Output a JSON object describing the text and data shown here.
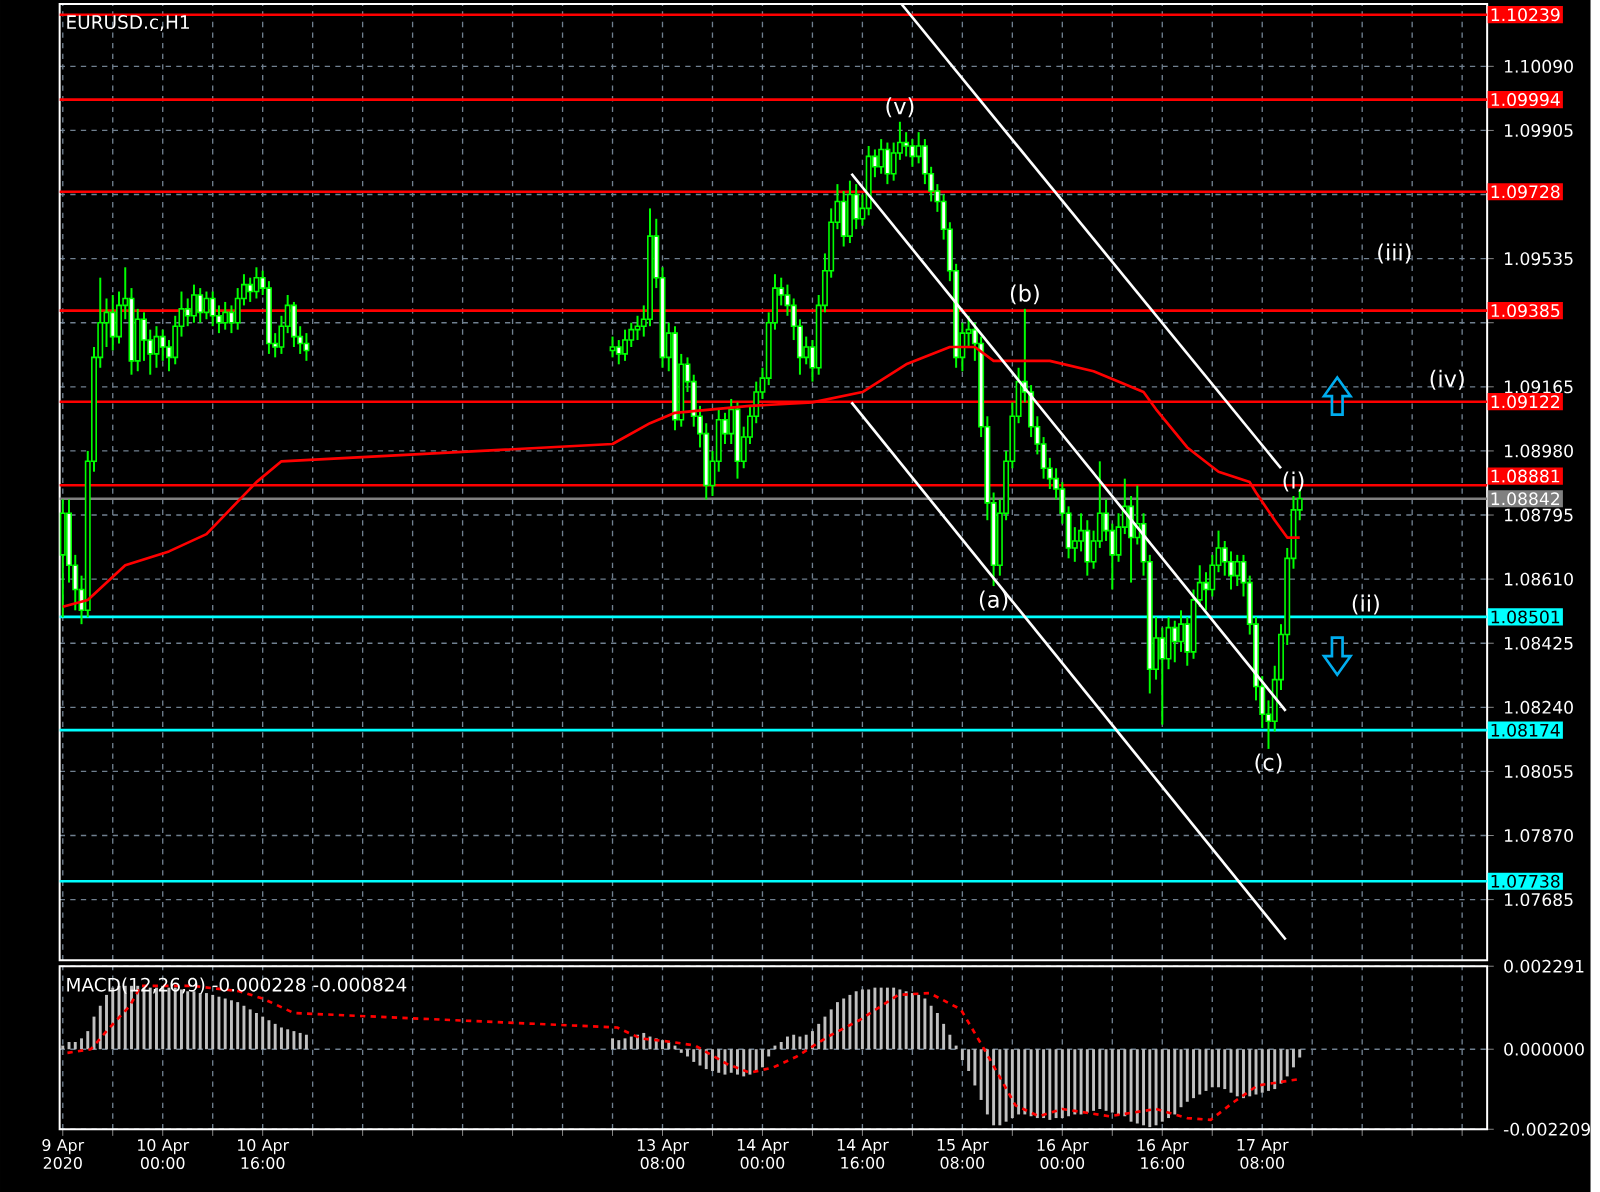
{
  "chart_data": [
    {
      "type": "candlestick",
      "title": "EURUSD.c,H1",
      "color": "#00ff00",
      "x": [
        "2020-04-09T08:00",
        "2020-04-09T09:00",
        "2020-04-09T10:00",
        "2020-04-09T11:00",
        "2020-04-09T12:00",
        "2020-04-09T13:00",
        "2020-04-09T14:00",
        "2020-04-09T15:00",
        "2020-04-09T16:00",
        "2020-04-09T17:00",
        "2020-04-09T18:00",
        "2020-04-09T19:00",
        "2020-04-09T20:00",
        "2020-04-09T21:00",
        "2020-04-09T22:00",
        "2020-04-09T23:00",
        "2020-04-10T00:00",
        "2020-04-10T01:00",
        "2020-04-10T02:00",
        "2020-04-10T03:00",
        "2020-04-10T04:00",
        "2020-04-10T05:00",
        "2020-04-10T06:00",
        "2020-04-10T07:00",
        "2020-04-10T08:00",
        "2020-04-10T09:00",
        "2020-04-10T10:00",
        "2020-04-10T11:00",
        "2020-04-10T12:00",
        "2020-04-10T13:00",
        "2020-04-10T14:00",
        "2020-04-10T15:00",
        "2020-04-10T16:00",
        "2020-04-10T17:00",
        "2020-04-10T18:00",
        "2020-04-10T19:00",
        "2020-04-10T20:00",
        "2020-04-10T21:00",
        "2020-04-10T22:00",
        "2020-04-10T23:00",
        "2020-04-13T00:00",
        "2020-04-13T01:00",
        "2020-04-13T02:00",
        "2020-04-13T03:00",
        "2020-04-13T04:00",
        "2020-04-13T05:00",
        "2020-04-13T06:00",
        "2020-04-13T07:00",
        "2020-04-13T08:00",
        "2020-04-13T09:00",
        "2020-04-13T10:00",
        "2020-04-13T11:00",
        "2020-04-13T12:00",
        "2020-04-13T13:00",
        "2020-04-13T14:00",
        "2020-04-13T15:00",
        "2020-04-13T16:00",
        "2020-04-13T17:00",
        "2020-04-13T18:00",
        "2020-04-13T19:00",
        "2020-04-13T20:00",
        "2020-04-13T21:00",
        "2020-04-13T22:00",
        "2020-04-13T23:00",
        "2020-04-14T00:00",
        "2020-04-14T01:00",
        "2020-04-14T02:00",
        "2020-04-14T03:00",
        "2020-04-14T04:00",
        "2020-04-14T05:00",
        "2020-04-14T06:00",
        "2020-04-14T07:00",
        "2020-04-14T08:00",
        "2020-04-14T09:00",
        "2020-04-14T10:00",
        "2020-04-14T11:00",
        "2020-04-14T12:00",
        "2020-04-14T13:00",
        "2020-04-14T14:00",
        "2020-04-14T15:00",
        "2020-04-14T16:00",
        "2020-04-14T17:00",
        "2020-04-14T18:00",
        "2020-04-14T19:00",
        "2020-04-14T20:00",
        "2020-04-14T21:00",
        "2020-04-14T22:00",
        "2020-04-14T23:00",
        "2020-04-15T00:00",
        "2020-04-15T01:00",
        "2020-04-15T02:00",
        "2020-04-15T03:00",
        "2020-04-15T04:00",
        "2020-04-15T05:00",
        "2020-04-15T06:00",
        "2020-04-15T07:00",
        "2020-04-15T08:00",
        "2020-04-15T09:00",
        "2020-04-15T10:00",
        "2020-04-15T11:00",
        "2020-04-15T12:00",
        "2020-04-15T13:00",
        "2020-04-15T14:00",
        "2020-04-15T15:00",
        "2020-04-15T16:00",
        "2020-04-15T17:00",
        "2020-04-15T18:00",
        "2020-04-15T19:00",
        "2020-04-15T20:00",
        "2020-04-15T21:00",
        "2020-04-15T22:00",
        "2020-04-15T23:00",
        "2020-04-16T00:00",
        "2020-04-16T01:00",
        "2020-04-16T02:00",
        "2020-04-16T03:00",
        "2020-04-16T04:00",
        "2020-04-16T05:00",
        "2020-04-16T06:00",
        "2020-04-16T07:00",
        "2020-04-16T08:00",
        "2020-04-16T09:00",
        "2020-04-16T10:00",
        "2020-04-16T11:00",
        "2020-04-16T12:00",
        "2020-04-16T13:00",
        "2020-04-16T14:00",
        "2020-04-16T15:00",
        "2020-04-16T16:00",
        "2020-04-16T17:00",
        "2020-04-16T18:00",
        "2020-04-16T19:00",
        "2020-04-16T20:00",
        "2020-04-16T21:00",
        "2020-04-16T22:00",
        "2020-04-16T23:00",
        "2020-04-17T00:00",
        "2020-04-17T01:00",
        "2020-04-17T02:00",
        "2020-04-17T03:00",
        "2020-04-17T04:00",
        "2020-04-17T05:00",
        "2020-04-17T06:00",
        "2020-04-17T07:00",
        "2020-04-17T08:00",
        "2020-04-17T09:00",
        "2020-04-17T10:00",
        "2020-04-17T11:00",
        "2020-04-17T12:00",
        "2020-04-17T13:00",
        "2020-04-17T14:00"
      ],
      "ohlc": [
        [
          1.0868,
          1.0884,
          1.085,
          1.088
        ],
        [
          1.088,
          1.0884,
          1.086,
          1.0865
        ],
        [
          1.0865,
          1.0868,
          1.0852,
          1.0858
        ],
        [
          1.0858,
          1.0862,
          1.0848,
          1.0852
        ],
        [
          1.0852,
          1.0898,
          1.085,
          1.0895
        ],
        [
          1.0895,
          1.0928,
          1.0892,
          1.0925
        ],
        [
          1.0925,
          1.0948,
          1.0922,
          1.0935
        ],
        [
          1.0935,
          1.0942,
          1.0928,
          1.0938
        ],
        [
          1.0938,
          1.0943,
          1.0927,
          1.0931
        ],
        [
          1.0931,
          1.0944,
          1.0929,
          1.094
        ],
        [
          1.094,
          1.0951,
          1.0936,
          1.0942
        ],
        [
          1.0942,
          1.0945,
          1.092,
          1.0924
        ],
        [
          1.0924,
          1.0939,
          1.0921,
          1.0936
        ],
        [
          1.0936,
          1.0938,
          1.0924,
          1.093
        ],
        [
          1.093,
          1.0933,
          1.092,
          1.0926
        ],
        [
          1.0926,
          1.0934,
          1.0922,
          1.0931
        ],
        [
          1.0931,
          1.0933,
          1.0924,
          1.0928
        ],
        [
          1.0928,
          1.093,
          1.0921,
          1.0925
        ],
        [
          1.0925,
          1.0937,
          1.0923,
          1.0934
        ],
        [
          1.0934,
          1.0944,
          1.0931,
          1.0939
        ],
        [
          1.0939,
          1.0942,
          1.0934,
          1.0937
        ],
        [
          1.0937,
          1.0946,
          1.0935,
          1.0943
        ],
        [
          1.0943,
          1.0945,
          1.0935,
          1.0938
        ],
        [
          1.0938,
          1.0944,
          1.0936,
          1.0942
        ],
        [
          1.0942,
          1.0944,
          1.0934,
          1.0937
        ],
        [
          1.0937,
          1.094,
          1.0932,
          1.0935
        ],
        [
          1.0935,
          1.0941,
          1.0933,
          1.0938
        ],
        [
          1.0938,
          1.094,
          1.0932,
          1.0935
        ],
        [
          1.0935,
          1.0945,
          1.0933,
          1.0942
        ],
        [
          1.0942,
          1.0949,
          1.094,
          1.0946
        ],
        [
          1.0946,
          1.0948,
          1.0941,
          1.0944
        ],
        [
          1.0944,
          1.0951,
          1.0942,
          1.0948
        ],
        [
          1.0948,
          1.095,
          1.0943,
          1.0945
        ],
        [
          1.0945,
          1.0947,
          1.0926,
          1.0929
        ],
        [
          1.0929,
          1.0932,
          1.0925,
          1.0928
        ],
        [
          1.0928,
          1.0937,
          1.0926,
          1.0934
        ],
        [
          1.0934,
          1.0943,
          1.0932,
          1.094
        ],
        [
          1.094,
          1.0941,
          1.0928,
          1.0931
        ],
        [
          1.0931,
          1.0934,
          1.0926,
          1.0929
        ],
        [
          1.0929,
          1.0932,
          1.0924,
          1.0927
        ],
        [
          1.0927,
          1.0931,
          1.0925,
          1.0928
        ],
        [
          1.0928,
          1.093,
          1.0923,
          1.0926
        ],
        [
          1.0926,
          1.0933,
          1.0924,
          1.093
        ],
        [
          1.093,
          1.0935,
          1.0928,
          1.0933
        ],
        [
          1.0933,
          1.0937,
          1.093,
          1.0934
        ],
        [
          1.0934,
          1.094,
          1.0931,
          1.0936
        ],
        [
          1.0936,
          1.0968,
          1.0934,
          1.096
        ],
        [
          1.096,
          1.0965,
          1.0945,
          1.0948
        ],
        [
          1.0948,
          1.0951,
          1.0922,
          1.0925
        ],
        [
          1.0925,
          1.0935,
          1.0921,
          1.0932
        ],
        [
          1.0932,
          1.0934,
          1.0904,
          1.0907
        ],
        [
          1.0907,
          1.0926,
          1.0905,
          1.0923
        ],
        [
          1.0923,
          1.0925,
          1.0915,
          1.0918
        ],
        [
          1.0918,
          1.092,
          1.0905,
          1.0908
        ],
        [
          1.0908,
          1.0911,
          1.0899,
          1.0903
        ],
        [
          1.0903,
          1.0906,
          1.0884,
          1.0888
        ],
        [
          1.0888,
          1.0898,
          1.0885,
          1.0895
        ],
        [
          1.0895,
          1.091,
          1.0892,
          1.0907
        ],
        [
          1.0907,
          1.0909,
          1.09,
          1.0903
        ],
        [
          1.0903,
          1.0913,
          1.09,
          1.091
        ],
        [
          1.091,
          1.0912,
          1.089,
          1.0895
        ],
        [
          1.0895,
          1.0905,
          1.0893,
          1.0902
        ],
        [
          1.0902,
          1.0911,
          1.09,
          1.0908
        ],
        [
          1.0908,
          1.0918,
          1.0906,
          1.0915
        ],
        [
          1.0915,
          1.0922,
          1.0913,
          1.0919
        ],
        [
          1.0919,
          1.0938,
          1.0917,
          1.0935
        ],
        [
          1.0935,
          1.0949,
          1.0933,
          1.0945
        ],
        [
          1.0945,
          1.0948,
          1.094,
          1.0943
        ],
        [
          1.0943,
          1.0946,
          1.0937,
          1.094
        ],
        [
          1.094,
          1.0942,
          1.093,
          1.0934
        ],
        [
          1.0934,
          1.0936,
          1.092,
          1.0925
        ],
        [
          1.0925,
          1.0931,
          1.0923,
          1.0928
        ],
        [
          1.0928,
          1.093,
          1.0918,
          1.0922
        ],
        [
          1.0922,
          1.0943,
          1.092,
          1.094
        ],
        [
          1.094,
          1.0955,
          1.0938,
          1.095
        ],
        [
          1.095,
          1.0968,
          1.0948,
          1.0964
        ],
        [
          1.0964,
          1.0975,
          1.0962,
          1.097
        ],
        [
          1.097,
          1.0973,
          1.0957,
          1.096
        ],
        [
          1.096,
          1.0976,
          1.0958,
          1.0972
        ],
        [
          1.0972,
          1.0975,
          1.0962,
          1.0965
        ],
        [
          1.0965,
          1.0972,
          1.0963,
          1.0968
        ],
        [
          1.0968,
          1.0986,
          1.0966,
          1.0983
        ],
        [
          1.0983,
          1.0985,
          1.0977,
          1.098
        ],
        [
          1.098,
          1.0988,
          1.0978,
          1.0985
        ],
        [
          1.0985,
          1.0987,
          1.0975,
          1.0978
        ],
        [
          1.0978,
          1.0987,
          1.0976,
          1.0984
        ],
        [
          1.0984,
          1.0993,
          1.0982,
          1.0987
        ],
        [
          1.0987,
          1.099,
          1.0983,
          1.0986
        ],
        [
          1.0986,
          1.0988,
          1.098,
          1.0983
        ],
        [
          1.0983,
          1.099,
          1.0981,
          1.0986
        ],
        [
          1.0986,
          1.0988,
          1.0975,
          1.0978
        ],
        [
          1.0978,
          1.098,
          1.097,
          1.0973
        ],
        [
          1.0973,
          1.0975,
          1.0967,
          1.097
        ],
        [
          1.097,
          1.0972,
          1.0959,
          1.0962
        ],
        [
          1.0962,
          1.0964,
          1.0947,
          1.095
        ],
        [
          1.095,
          1.0952,
          1.0922,
          1.0925
        ],
        [
          1.0925,
          1.0935,
          1.0921,
          1.0932
        ],
        [
          1.0932,
          1.0937,
          1.0928,
          1.0933
        ],
        [
          1.0933,
          1.0935,
          1.0924,
          1.0929
        ],
        [
          1.0929,
          1.0931,
          1.0902,
          1.0905
        ],
        [
          1.0905,
          1.0908,
          1.0878,
          1.0883
        ],
        [
          1.0883,
          1.0886,
          1.0859,
          1.0865
        ],
        [
          1.0865,
          1.0884,
          1.0862,
          1.088
        ],
        [
          1.088,
          1.0898,
          1.0878,
          1.0895
        ],
        [
          1.0895,
          1.0912,
          1.0893,
          1.0908
        ],
        [
          1.0908,
          1.0922,
          1.0906,
          1.0918
        ],
        [
          1.0918,
          1.0939,
          1.0912,
          1.0915
        ],
        [
          1.0915,
          1.0917,
          1.0902,
          1.0905
        ],
        [
          1.0905,
          1.0908,
          1.0897,
          1.09
        ],
        [
          1.09,
          1.0902,
          1.089,
          1.0893
        ],
        [
          1.0893,
          1.0896,
          1.0887,
          1.089
        ],
        [
          1.089,
          1.0893,
          1.0884,
          1.0887
        ],
        [
          1.0887,
          1.0889,
          1.0877,
          1.088
        ],
        [
          1.088,
          1.0882,
          1.0867,
          1.087
        ],
        [
          1.087,
          1.0876,
          1.0866,
          1.0872
        ],
        [
          1.0872,
          1.088,
          1.0869,
          1.0875
        ],
        [
          1.0875,
          1.0878,
          1.0862,
          1.0866
        ],
        [
          1.0866,
          1.0875,
          1.0864,
          1.0872
        ],
        [
          1.0872,
          1.0895,
          1.087,
          1.088
        ],
        [
          1.088,
          1.0884,
          1.0872,
          1.0875
        ],
        [
          1.0875,
          1.0877,
          1.0858,
          1.0868
        ],
        [
          1.0868,
          1.088,
          1.0866,
          1.0876
        ],
        [
          1.0876,
          1.089,
          1.0874,
          1.0882
        ],
        [
          1.0882,
          1.0885,
          1.086,
          1.0873
        ],
        [
          1.0873,
          1.0888,
          1.0871,
          1.0877
        ],
        [
          1.0877,
          1.088,
          1.0862,
          1.0866
        ],
        [
          1.0866,
          1.0868,
          1.0828,
          1.0835
        ],
        [
          1.0835,
          1.085,
          1.0832,
          1.0844
        ],
        [
          1.0844,
          1.0847,
          1.0819,
          1.0838
        ],
        [
          1.0838,
          1.085,
          1.0835,
          1.0847
        ],
        [
          1.0847,
          1.0849,
          1.0837,
          1.0843
        ],
        [
          1.0843,
          1.0852,
          1.084,
          1.0848
        ],
        [
          1.0848,
          1.085,
          1.0836,
          1.084
        ],
        [
          1.084,
          1.0858,
          1.0838,
          1.0855
        ],
        [
          1.0855,
          1.0865,
          1.0853,
          1.086
        ],
        [
          1.086,
          1.0863,
          1.0852,
          1.0858
        ],
        [
          1.0858,
          1.0868,
          1.0856,
          1.0865
        ],
        [
          1.0865,
          1.0875,
          1.0863,
          1.087
        ],
        [
          1.087,
          1.0872,
          1.0862,
          1.0866
        ],
        [
          1.0866,
          1.0869,
          1.0858,
          1.0862
        ],
        [
          1.0862,
          1.0868,
          1.0859,
          1.0866
        ],
        [
          1.0866,
          1.0868,
          1.0856,
          1.086
        ],
        [
          1.086,
          1.0862,
          1.0845,
          1.0848
        ],
        [
          1.0848,
          1.085,
          1.0826,
          1.083
        ],
        [
          1.083,
          1.0833,
          1.0818,
          1.0822
        ],
        [
          1.0822,
          1.0826,
          1.0812,
          1.082
        ],
        [
          1.082,
          1.0836,
          1.0817,
          1.0832
        ],
        [
          1.0832,
          1.0848,
          1.0829,
          1.0845
        ],
        [
          1.0845,
          1.087,
          1.0842,
          1.0867
        ],
        [
          1.0867,
          1.0885,
          1.0864,
          1.0881
        ],
        [
          1.0881,
          1.0887,
          1.0878,
          1.08842
        ]
      ],
      "series": [
        {
          "type": "line",
          "color": "#ff0000",
          "x": [
            "2020-04-09T08:00",
            "2020-04-09T12:00",
            "2020-04-09T18:00",
            "2020-04-10T01:00",
            "2020-04-10T07:00",
            "2020-04-10T15:00",
            "2020-04-10T19:00",
            "2020-04-13T00:00",
            "2020-04-13T06:00",
            "2020-04-13T10:00",
            "2020-04-13T22:00",
            "2020-04-14T08:00",
            "2020-04-14T16:00",
            "2020-04-14T23:00",
            "2020-04-15T06:00",
            "2020-04-15T10:00",
            "2020-04-15T13:00",
            "2020-04-15T22:00",
            "2020-04-16T05:00",
            "2020-04-16T13:00",
            "2020-04-16T15:00",
            "2020-04-16T20:00",
            "2020-04-17T01:00",
            "2020-04-17T06:00",
            "2020-04-17T07:00",
            "2020-04-17T10:00",
            "2020-04-17T12:00",
            "2020-04-17T14:00"
          ],
          "values": [
            1.0853,
            1.0855,
            1.0865,
            1.0869,
            1.0874,
            1.0889,
            1.0895,
            1.09,
            1.0906,
            1.0909,
            1.0911,
            1.0912,
            1.0915,
            1.0923,
            1.0928,
            1.0928,
            1.0924,
            1.0924,
            1.0921,
            1.0915,
            1.091,
            1.0899,
            1.0892,
            1.0889,
            1.0886,
            1.0878,
            1.0873,
            1.0873
          ]
        },
        {
          "type": "line",
          "color": "#ffffff",
          "x": [
            "2020-04-14T22:15",
            "2020-04-17T11:00"
          ],
          "values": [
            1.1027,
            1.0893
          ]
        },
        {
          "type": "line",
          "color": "#ffffff",
          "x": [
            "2020-04-14T14:15",
            "2020-04-17T11:45"
          ],
          "values": [
            1.0978,
            1.0823
          ]
        },
        {
          "type": "line",
          "color": "#ffffff",
          "x": [
            "2020-04-14T14:15",
            "2020-04-17T11:45"
          ],
          "values": [
            1.0912,
            1.0757
          ]
        }
      ],
      "xlim": [
        "2020-04-09T07:30",
        "2020-04-18T20:00"
      ],
      "ylim": [
        1.0751,
        1.1027
      ],
      "xticks": [
        {
          "value": "2020-04-09T08:00",
          "label": null
        },
        {
          "value": "2020-04-09T16:00",
          "label": null
        },
        {
          "value": "2020-04-10T00:00",
          "label": null
        },
        {
          "value": "2020-04-10T08:00",
          "label": null
        },
        {
          "value": "2020-04-10T16:00",
          "label": null
        },
        {
          "value": "2020-04-11T00:00",
          "label": null
        },
        {
          "value": "2020-04-11T08:00",
          "label": null
        },
        {
          "value": "2020-04-11T16:00",
          "label": null
        },
        {
          "value": "2020-04-12T00:00",
          "label": null
        },
        {
          "value": "2020-04-12T08:00",
          "label": null
        },
        {
          "value": "2020-04-12T16:00",
          "label": null
        },
        {
          "value": "2020-04-13T00:00",
          "label": null
        },
        {
          "value": "2020-04-13T08:00",
          "label": null
        },
        {
          "value": "2020-04-13T16:00",
          "label": null
        },
        {
          "value": "2020-04-14T00:00",
          "label": null
        },
        {
          "value": "2020-04-14T08:00",
          "label": null
        },
        {
          "value": "2020-04-14T16:00",
          "label": null
        },
        {
          "value": "2020-04-15T00:00",
          "label": null
        },
        {
          "value": "2020-04-15T08:00",
          "label": null
        },
        {
          "value": "2020-04-15T16:00",
          "label": null
        },
        {
          "value": "2020-04-16T00:00",
          "label": null
        },
        {
          "value": "2020-04-16T08:00",
          "label": null
        },
        {
          "value": "2020-04-16T16:00",
          "label": null
        },
        {
          "value": "2020-04-17T00:00",
          "label": null
        },
        {
          "value": "2020-04-17T08:00",
          "label": null
        },
        {
          "value": "2020-04-17T16:00",
          "label": null
        },
        {
          "value": "2020-04-18T00:00",
          "label": null
        },
        {
          "value": "2020-04-18T08:00",
          "label": null
        },
        {
          "value": "2020-04-18T16:00",
          "label": null
        }
      ],
      "yticks": [
        {
          "value": 1.07685,
          "label": "1.07685"
        },
        {
          "value": 1.0787,
          "label": "1.07870"
        },
        {
          "value": 1.08055,
          "label": "1.08055"
        },
        {
          "value": 1.0824,
          "label": "1.08240"
        },
        {
          "value": 1.08425,
          "label": "1.08425"
        },
        {
          "value": 1.0861,
          "label": "1.08610"
        },
        {
          "value": 1.08795,
          "label": "1.08795"
        },
        {
          "value": 1.0898,
          "label": "1.08980"
        },
        {
          "value": 1.09165,
          "label": "1.09165"
        },
        {
          "value": 1.0935,
          "label": null
        },
        {
          "value": 1.09535,
          "label": "1.09535"
        },
        {
          "value": 1.0972,
          "label": null
        },
        {
          "value": 1.09905,
          "label": "1.09905"
        },
        {
          "value": 1.1009,
          "label": "1.10090"
        }
      ],
      "ref_lines": [
        {
          "axis": "y",
          "value": 1.10239,
          "label": "1.10239",
          "color": "#ff0000"
        },
        {
          "axis": "y",
          "value": 1.09994,
          "label": "1.09994",
          "color": "#ff0000"
        },
        {
          "axis": "y",
          "value": 1.09728,
          "label": "1.09728",
          "color": "#ff0000"
        },
        {
          "axis": "y",
          "value": 1.09385,
          "label": "1.09385",
          "color": "#ff0000"
        },
        {
          "axis": "y",
          "value": 1.09122,
          "label": "1.09122",
          "color": "#ff0000"
        },
        {
          "axis": "y",
          "value": 1.08881,
          "label": "1.08881",
          "color": "#ff0000"
        },
        {
          "axis": "y",
          "value": 1.08842,
          "label": "1.08842",
          "color": "#808080"
        },
        {
          "axis": "y",
          "value": 1.08501,
          "label": "1.08501",
          "color": "#00ffff"
        },
        {
          "axis": "y",
          "value": 1.08174,
          "label": "1.08174",
          "color": "#00ffff"
        },
        {
          "axis": "y",
          "value": 1.07738,
          "label": "1.07738",
          "color": "#00ffff"
        }
      ],
      "annotations": [
        {
          "text": "(v)",
          "x": "2020-04-14T22:00",
          "y": 1.0993
        },
        {
          "text": "(b)",
          "x": "2020-04-15T18:00",
          "y": 1.0939
        },
        {
          "text": "(a)",
          "x": "2020-04-15T13:00",
          "y": 1.0859
        },
        {
          "text": "(c)",
          "x": "2020-04-17T09:00",
          "y": 1.0812
        },
        {
          "text": "(i)",
          "x": "2020-04-17T13:00",
          "y": 1.0885
        },
        "(ii)",
        "(iii)",
        "(iv)"
      ],
      "grid": true,
      "tick_labels": "y"
    },
    {
      "type": "bar",
      "title": "MACD(12,26,9) -0.000228 -0.000824",
      "x": [
        "2020-04-09T08:00",
        "2020-04-09T09:00",
        "2020-04-09T10:00",
        "2020-04-09T11:00",
        "2020-04-09T12:00",
        "2020-04-09T13:00",
        "2020-04-09T14:00",
        "2020-04-09T15:00",
        "2020-04-09T16:00",
        "2020-04-09T17:00",
        "2020-04-09T18:00",
        "2020-04-09T19:00",
        "2020-04-09T20:00",
        "2020-04-09T21:00",
        "2020-04-09T22:00",
        "2020-04-09T23:00",
        "2020-04-10T00:00",
        "2020-04-10T01:00",
        "2020-04-10T02:00",
        "2020-04-10T03:00",
        "2020-04-10T04:00",
        "2020-04-10T05:00",
        "2020-04-10T06:00",
        "2020-04-10T07:00",
        "2020-04-10T08:00",
        "2020-04-10T09:00",
        "2020-04-10T10:00",
        "2020-04-10T11:00",
        "2020-04-10T12:00",
        "2020-04-10T13:00",
        "2020-04-10T14:00",
        "2020-04-10T15:00",
        "2020-04-10T16:00",
        "2020-04-10T17:00",
        "2020-04-10T18:00",
        "2020-04-10T19:00",
        "2020-04-10T20:00",
        "2020-04-10T21:00",
        "2020-04-10T22:00",
        "2020-04-10T23:00",
        "2020-04-13T00:00",
        "2020-04-13T01:00",
        "2020-04-13T02:00",
        "2020-04-13T03:00",
        "2020-04-13T04:00",
        "2020-04-13T05:00",
        "2020-04-13T06:00",
        "2020-04-13T07:00",
        "2020-04-13T08:00",
        "2020-04-13T09:00",
        "2020-04-13T10:00",
        "2020-04-13T11:00",
        "2020-04-13T12:00",
        "2020-04-13T13:00",
        "2020-04-13T14:00",
        "2020-04-13T15:00",
        "2020-04-13T16:00",
        "2020-04-13T17:00",
        "2020-04-13T18:00",
        "2020-04-13T19:00",
        "2020-04-13T20:00",
        "2020-04-13T21:00",
        "2020-04-13T22:00",
        "2020-04-13T23:00",
        "2020-04-14T00:00",
        "2020-04-14T01:00",
        "2020-04-14T02:00",
        "2020-04-14T03:00",
        "2020-04-14T04:00",
        "2020-04-14T05:00",
        "2020-04-14T06:00",
        "2020-04-14T07:00",
        "2020-04-14T08:00",
        "2020-04-14T09:00",
        "2020-04-14T10:00",
        "2020-04-14T11:00",
        "2020-04-14T12:00",
        "2020-04-14T13:00",
        "2020-04-14T14:00",
        "2020-04-14T15:00",
        "2020-04-14T16:00",
        "2020-04-14T17:00",
        "2020-04-14T18:00",
        "2020-04-14T19:00",
        "2020-04-14T20:00",
        "2020-04-14T21:00",
        "2020-04-14T22:00",
        "2020-04-14T23:00",
        "2020-04-15T00:00",
        "2020-04-15T01:00",
        "2020-04-15T02:00",
        "2020-04-15T03:00",
        "2020-04-15T04:00",
        "2020-04-15T05:00",
        "2020-04-15T06:00",
        "2020-04-15T07:00",
        "2020-04-15T08:00",
        "2020-04-15T09:00",
        "2020-04-15T10:00",
        "2020-04-15T11:00",
        "2020-04-15T12:00",
        "2020-04-15T13:00",
        "2020-04-15T14:00",
        "2020-04-15T15:00",
        "2020-04-15T16:00",
        "2020-04-15T17:00",
        "2020-04-15T18:00",
        "2020-04-15T19:00",
        "2020-04-15T20:00",
        "2020-04-15T21:00",
        "2020-04-15T22:00",
        "2020-04-15T23:00",
        "2020-04-16T00:00",
        "2020-04-16T01:00",
        "2020-04-16T02:00",
        "2020-04-16T03:00",
        "2020-04-16T04:00",
        "2020-04-16T05:00",
        "2020-04-16T06:00",
        "2020-04-16T07:00",
        "2020-04-16T08:00",
        "2020-04-16T09:00",
        "2020-04-16T10:00",
        "2020-04-16T11:00",
        "2020-04-16T12:00",
        "2020-04-16T13:00",
        "2020-04-16T14:00",
        "2020-04-16T15:00",
        "2020-04-16T16:00",
        "2020-04-16T17:00",
        "2020-04-16T18:00",
        "2020-04-16T19:00",
        "2020-04-16T20:00",
        "2020-04-16T21:00",
        "2020-04-16T22:00",
        "2020-04-16T23:00",
        "2020-04-17T00:00",
        "2020-04-17T01:00",
        "2020-04-17T02:00",
        "2020-04-17T03:00",
        "2020-04-17T04:00",
        "2020-04-17T05:00",
        "2020-04-17T06:00",
        "2020-04-17T07:00",
        "2020-04-17T08:00",
        "2020-04-17T09:00",
        "2020-04-17T10:00",
        "2020-04-17T11:00",
        "2020-04-17T12:00",
        "2020-04-17T13:00",
        "2020-04-17T14:00"
      ],
      "series": [
        {
          "type": "bar",
          "color": "#c0c0c0",
          "values": [
            0.0001,
            0.0002,
            0.0002,
            0.0003,
            0.0005,
            0.0009,
            0.0012,
            0.0015,
            0.0017,
            0.00175,
            0.00175,
            0.00175,
            0.00175,
            0.0017,
            0.0017,
            0.0017,
            0.00175,
            0.0017,
            0.0017,
            0.00165,
            0.0016,
            0.0016,
            0.00155,
            0.00155,
            0.0015,
            0.00145,
            0.0014,
            0.00135,
            0.0013,
            0.0012,
            0.0011,
            0.001,
            0.0009,
            0.0008,
            0.0007,
            0.0006,
            0.00055,
            0.0005,
            0.00045,
            0.0004,
            0.0003,
            0.00025,
            0.0003,
            0.00035,
            0.0004,
            0.00045,
            0.00035,
            0.0003,
            0.00025,
            0.0002,
            0.0001,
            -0.0001,
            -0.0002,
            -0.00035,
            -0.00045,
            -0.00055,
            -0.0006,
            -0.00065,
            -0.0007,
            -0.00065,
            -0.0007,
            -0.00075,
            -0.0007,
            -0.0006,
            -0.0005,
            -0.0002,
            0.0001,
            0.0002,
            0.00035,
            0.0004,
            0.00035,
            0.0004,
            0.0005,
            0.0007,
            0.0009,
            0.0011,
            0.0013,
            0.0014,
            0.0015,
            0.0016,
            0.00165,
            0.00165,
            0.0017,
            0.0017,
            0.0017,
            0.0017,
            0.00165,
            0.0016,
            0.00155,
            0.0015,
            0.0014,
            0.0012,
            0.001,
            0.0007,
            0.0004,
            0.0001,
            -0.0003,
            -0.0006,
            -0.001,
            -0.0014,
            -0.0018,
            -0.0021,
            -0.0021,
            -0.002,
            -0.0019,
            -0.0018,
            -0.0018,
            -0.00185,
            -0.0019,
            -0.0019,
            -0.00195,
            -0.0019,
            -0.0019,
            -0.00185,
            -0.0018,
            -0.0018,
            -0.00175,
            -0.0017,
            -0.00165,
            -0.0017,
            -0.00175,
            -0.0018,
            -0.00185,
            -0.002,
            -0.00205,
            -0.0021,
            -0.00215,
            -0.0021,
            -0.002,
            -0.0019,
            -0.0018,
            -0.0016,
            -0.00145,
            -0.00135,
            -0.00125,
            -0.00115,
            -0.00105,
            -0.00105,
            -0.0011,
            -0.0012,
            -0.0013,
            -0.00135,
            -0.0013,
            -0.00125,
            -0.0012,
            -0.00115,
            -0.0011,
            -0.00095,
            -0.00075,
            -0.0005,
            -0.000228
          ]
        },
        {
          "type": "line",
          "color": "#ff0000",
          "line_style": "dashed",
          "x": [
            "2020-04-09T08:45",
            "2020-04-09T12:30",
            "2020-04-09T15:00",
            "2020-04-09T18:45",
            "2020-04-09T20:30",
            "2020-04-10T04:45",
            "2020-04-10T12:15",
            "2020-04-10T16:00",
            "2020-04-10T21:00",
            "2020-04-13T00:45",
            "2020-04-13T04:30",
            "2020-04-13T09:30",
            "2020-04-13T13:15",
            "2020-04-13T18:15",
            "2020-04-13T22:00",
            "2020-04-14T01:45",
            "2020-04-14T05:30",
            "2020-04-14T10:30",
            "2020-04-14T15:30",
            "2020-04-14T21:45",
            "2020-04-15T02:45",
            "2020-04-15T07:45",
            "2020-04-15T11:30",
            "2020-04-15T16:30",
            "2020-04-15T20:15",
            "2020-04-16T00:00",
            "2020-04-16T07:30",
            "2020-04-16T15:00",
            "2020-04-16T20:00",
            "2020-04-16T23:45",
            "2020-04-17T03:30",
            "2020-04-17T07:15",
            "2020-04-17T14:00"
          ],
          "values": [
            -0.0001,
            0,
            0.0005,
            0.0012,
            0.00175,
            0.00175,
            0.0016,
            0.0014,
            0.001,
            0.0006,
            0.0003,
            0.0002,
            0.0001,
            -0.0004,
            -0.00065,
            -0.0005,
            -0.0002,
            0.00035,
            0.0008,
            0.0015,
            0.00155,
            0.0011,
            0,
            -0.00155,
            -0.00185,
            -0.00165,
            -0.00185,
            -0.00165,
            -0.0019,
            -0.00195,
            -0.00145,
            -0.001,
            -0.000824
          ]
        }
      ],
      "xlim": [
        "2020-04-09T07:30",
        "2020-04-18T20:00"
      ],
      "ylim": [
        -0.002209,
        0.002291
      ],
      "xticks": [
        {
          "value": "2020-04-09T08:00",
          "label": "9 Apr 2020"
        },
        {
          "value": "2020-04-09T16:00",
          "label": null
        },
        {
          "value": "2020-04-10T00:00",
          "label": "10 Apr 00:00"
        },
        {
          "value": "2020-04-10T08:00",
          "label": null
        },
        {
          "value": "2020-04-10T16:00",
          "label": "10 Apr 16:00"
        },
        {
          "value": "2020-04-11T00:00",
          "label": null
        },
        {
          "value": "2020-04-11T08:00",
          "label": null
        },
        {
          "value": "2020-04-11T16:00",
          "label": null
        },
        {
          "value": "2020-04-12T00:00",
          "label": null
        },
        {
          "value": "2020-04-12T08:00",
          "label": null
        },
        {
          "value": "2020-04-12T16:00",
          "label": null
        },
        {
          "value": "2020-04-13T00:00",
          "label": null
        },
        {
          "value": "2020-04-13T08:00",
          "label": "13 Apr 08:00"
        },
        {
          "value": "2020-04-13T16:00",
          "label": null
        },
        {
          "value": "2020-04-14T00:00",
          "label": "14 Apr 00:00"
        },
        {
          "value": "2020-04-14T08:00",
          "label": null
        },
        {
          "value": "2020-04-14T16:00",
          "label": "14 Apr 16:00"
        },
        {
          "value": "2020-04-15T00:00",
          "label": null
        },
        {
          "value": "2020-04-15T08:00",
          "label": "15 Apr 08:00"
        },
        {
          "value": "2020-04-15T16:00",
          "label": null
        },
        {
          "value": "2020-04-16T00:00",
          "label": "16 Apr 00:00"
        },
        {
          "value": "2020-04-16T08:00",
          "label": null
        },
        {
          "value": "2020-04-16T16:00",
          "label": "16 Apr 16:00"
        },
        {
          "value": "2020-04-17T00:00",
          "label": null
        },
        {
          "value": "2020-04-17T08:00",
          "label": "17 Apr 08:00"
        },
        {
          "value": "2020-04-17T16:00",
          "label": null
        },
        {
          "value": "2020-04-18T00:00",
          "label": null
        },
        {
          "value": "2020-04-18T08:00",
          "label": null
        },
        {
          "value": "2020-04-18T16:00",
          "label": null
        }
      ],
      "yticks": [
        {
          "value": -0.002209,
          "label": "-0.002209"
        },
        {
          "value": 0,
          "label": "0.000000"
        },
        {
          "value": 0.002291,
          "label": "0.002291"
        }
      ],
      "grid": true
    }
  ]
}
